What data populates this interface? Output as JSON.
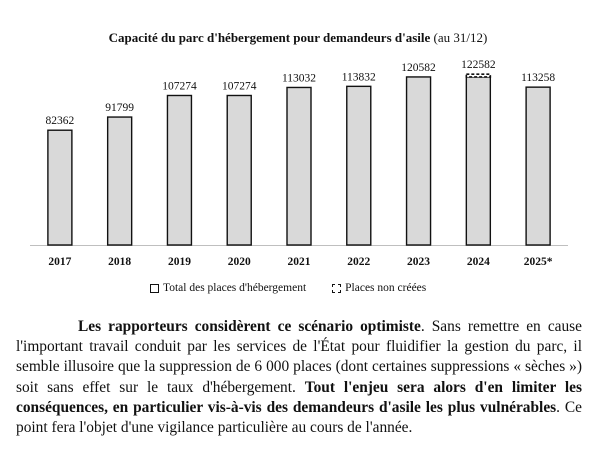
{
  "chart_data": {
    "type": "bar",
    "title": "Capacité du parc d'hébergement pour demandeurs d'asile",
    "subtitle": "(au 31/12)",
    "categories": [
      "2017",
      "2018",
      "2019",
      "2020",
      "2021",
      "2022",
      "2023",
      "2024",
      "2025*"
    ],
    "series": [
      {
        "name": "Total des places d'hébergement",
        "values": [
          82362,
          91799,
          107274,
          107274,
          113032,
          113832,
          120582,
          120582,
          113258
        ]
      },
      {
        "name": "Places non créées",
        "values": [
          0,
          0,
          0,
          0,
          0,
          0,
          0,
          2000,
          0
        ]
      }
    ],
    "data_labels": [
      "82362",
      "91799",
      "107274",
      "107274",
      "113032",
      "113832",
      "120582",
      "122582",
      "113258"
    ],
    "ylim": [
      0,
      160000
    ],
    "grid": false,
    "legend_position": "bottom",
    "colors": {
      "bar_fill": "#d9d9d9",
      "bar_stroke": "#111111",
      "axis": "#bfbfbf"
    }
  },
  "text": {
    "p_lead_bold": "Les rapporteurs considèrent ce scénario optimiste",
    "p_mid": ". Sans remettre en cause l'important travail conduit par les services de l'État pour fluidifier la gestion du parc, il semble illusoire que la suppression de 6 000 places (dont certaines suppressions « sèches ») soit sans effet sur le taux d'hébergement. ",
    "p_bold2": "Tout l'enjeu sera alors d'en limiter les conséquences, en particulier vis-à-vis des demandeurs d'asile les plus vulnérables",
    "p_end": ". Ce point fera l'objet d'une vigilance particulière au cours de l'année."
  }
}
